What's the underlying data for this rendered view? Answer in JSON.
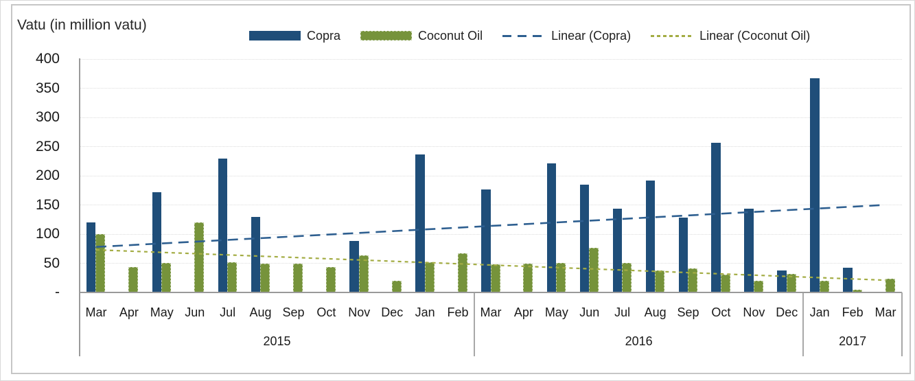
{
  "chart_title": "Vatu (in million vatu)",
  "legend": [
    {
      "label": "Copra",
      "type": "bar",
      "color": "#1F4E79"
    },
    {
      "label": "Coconut Oil",
      "type": "bar",
      "color": "#76933B",
      "textured": true
    },
    {
      "label": "Linear (Copra)",
      "type": "line",
      "color": "#2E5F90",
      "dash": "long"
    },
    {
      "label": "Linear (Coconut Oil)",
      "type": "line",
      "color": "#A3AC43",
      "dash": "short"
    }
  ],
  "chart_data": {
    "type": "bar",
    "title": "Vatu (in million vatu)",
    "ylabel": "Vatu (in million vatu)",
    "ylim": [
      0,
      400
    ],
    "ytick_interval": 50,
    "ytick_labels": [
      "-",
      "50",
      "100",
      "150",
      "200",
      "250",
      "300",
      "350",
      "400"
    ],
    "grid": true,
    "legend_position": "top",
    "categories": [
      "Mar",
      "Apr",
      "May",
      "Jun",
      "Jul",
      "Aug",
      "Sep",
      "Oct",
      "Nov",
      "Dec",
      "Jan",
      "Feb",
      "Mar",
      "Apr",
      "May",
      "Jun",
      "Jul",
      "Aug",
      "Sep",
      "Oct",
      "Nov",
      "Dec",
      "Jan",
      "Feb",
      "Mar"
    ],
    "year_groups": [
      {
        "label": "2015",
        "count": 12
      },
      {
        "label": "2016",
        "count": 10
      },
      {
        "label": "2017",
        "count": 3
      }
    ],
    "series": [
      {
        "name": "Copra",
        "color": "#1F4E79",
        "values": [
          120,
          0,
          172,
          0,
          229,
          129,
          0,
          0,
          88,
          0,
          236,
          0,
          176,
          0,
          221,
          185,
          143,
          192,
          128,
          256,
          143,
          38,
          367,
          42,
          0
        ]
      },
      {
        "name": "Coconut Oil",
        "color": "#76933B",
        "values": [
          100,
          44,
          51,
          120,
          52,
          50,
          50,
          44,
          63,
          20,
          52,
          67,
          48,
          49,
          51,
          76,
          51,
          38,
          41,
          31,
          20,
          32,
          20,
          5,
          24
        ]
      }
    ],
    "trendlines": [
      {
        "name": "Linear (Copra)",
        "color": "#2E5F90",
        "dash": "long",
        "start": 78,
        "end": 150
      },
      {
        "name": "Linear (Coconut Oil)",
        "color": "#A3AC43",
        "dash": "short",
        "start": 73,
        "end": 21
      }
    ]
  }
}
